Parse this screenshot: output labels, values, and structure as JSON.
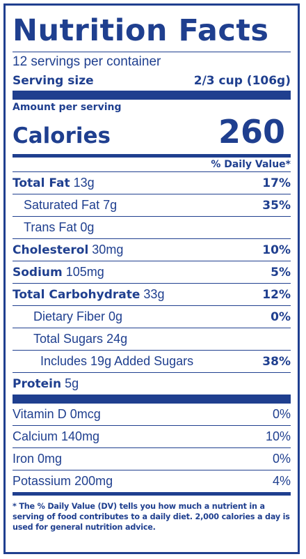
{
  "title": "Nutrition Facts",
  "servings_per_container": "12 servings per container",
  "serving_size": {
    "label": "Serving size",
    "value": "2/3 cup (106g)"
  },
  "amount_per_serving": "Amount per serving",
  "calories": {
    "label": "Calories",
    "value": "260"
  },
  "daily_value_header": "% Daily Value*",
  "nutrients": [
    {
      "name": "Total Fat",
      "amount": "13g",
      "dv": "17%"
    },
    {
      "name": "Saturated Fat",
      "amount": "7g",
      "dv": "35%"
    },
    {
      "name": "Trans Fat",
      "amount": "0g",
      "dv": ""
    },
    {
      "name": "Cholesterol",
      "amount": "30mg",
      "dv": "10%"
    },
    {
      "name": "Sodium",
      "amount": "105mg",
      "dv": "5%"
    },
    {
      "name": "Total Carbohydrate",
      "amount": "33g",
      "dv": "12%"
    },
    {
      "name": "Dietary Fiber",
      "amount": "0g",
      "dv": "0%"
    },
    {
      "name": "Total Sugars",
      "amount": "24g",
      "dv": ""
    },
    {
      "name": "Includes 19g Added Sugars",
      "amount": "",
      "dv": "38%"
    },
    {
      "name": "Protein",
      "amount": "5g",
      "dv": ""
    }
  ],
  "vitamins": [
    {
      "name": "Vitamin D",
      "amount": "0mcg",
      "dv": "0%"
    },
    {
      "name": "Calcium",
      "amount": "140mg",
      "dv": "10%"
    },
    {
      "name": "Iron",
      "amount": "0mg",
      "dv": "0%"
    },
    {
      "name": "Potassium",
      "amount": "200mg",
      "dv": "4%"
    }
  ],
  "footnote": "* The % Daily Value (DV) tells you how much a nutrient in a serving of food contributes to a daily diet. 2,000 calories a day is used for general nutrition advice.",
  "colors": {
    "ink": "#1f3f8f",
    "background": "#ffffff"
  }
}
